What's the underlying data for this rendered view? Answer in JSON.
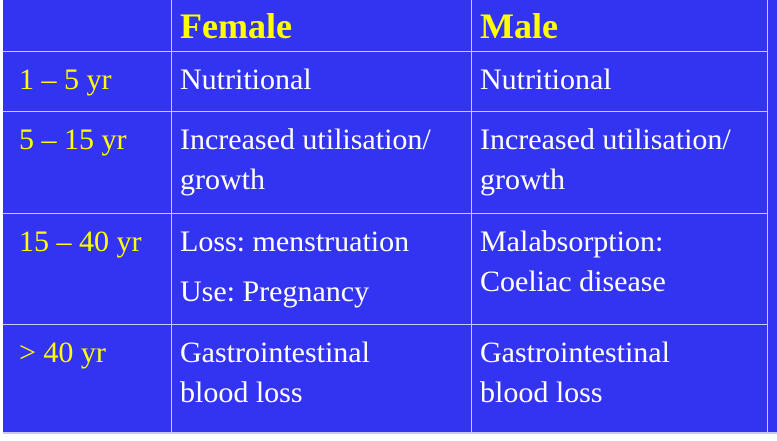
{
  "colors": {
    "background": "#3333F2",
    "grid": "#C9C9F4",
    "header-text": "#FFFF00",
    "label-text": "#FFFF00",
    "body-text": "#FFFFFF",
    "page": "#FFFFFF"
  },
  "table": {
    "header": {
      "corner": "",
      "female": "Female",
      "male": "Male"
    },
    "rows": [
      {
        "label": "1 – 5 yr",
        "female_lines": [
          "Nutritional"
        ],
        "male_lines": [
          "Nutritional"
        ]
      },
      {
        "label": "5 – 15 yr",
        "female_lines": [
          "Increased utilisation/",
          "growth"
        ],
        "male_lines": [
          "Increased utilisation/",
          "growth"
        ]
      },
      {
        "label": "15 – 40 yr",
        "female_lines": [
          "Loss: menstruation",
          "Use: Pregnancy"
        ],
        "male_lines": [
          "Malabsorption:",
          "Coeliac disease"
        ]
      },
      {
        "label": "> 40 yr",
        "female_lines": [
          "Gastrointestinal",
          "blood loss"
        ],
        "male_lines": [
          "Gastrointestinal",
          "blood loss"
        ]
      }
    ]
  }
}
